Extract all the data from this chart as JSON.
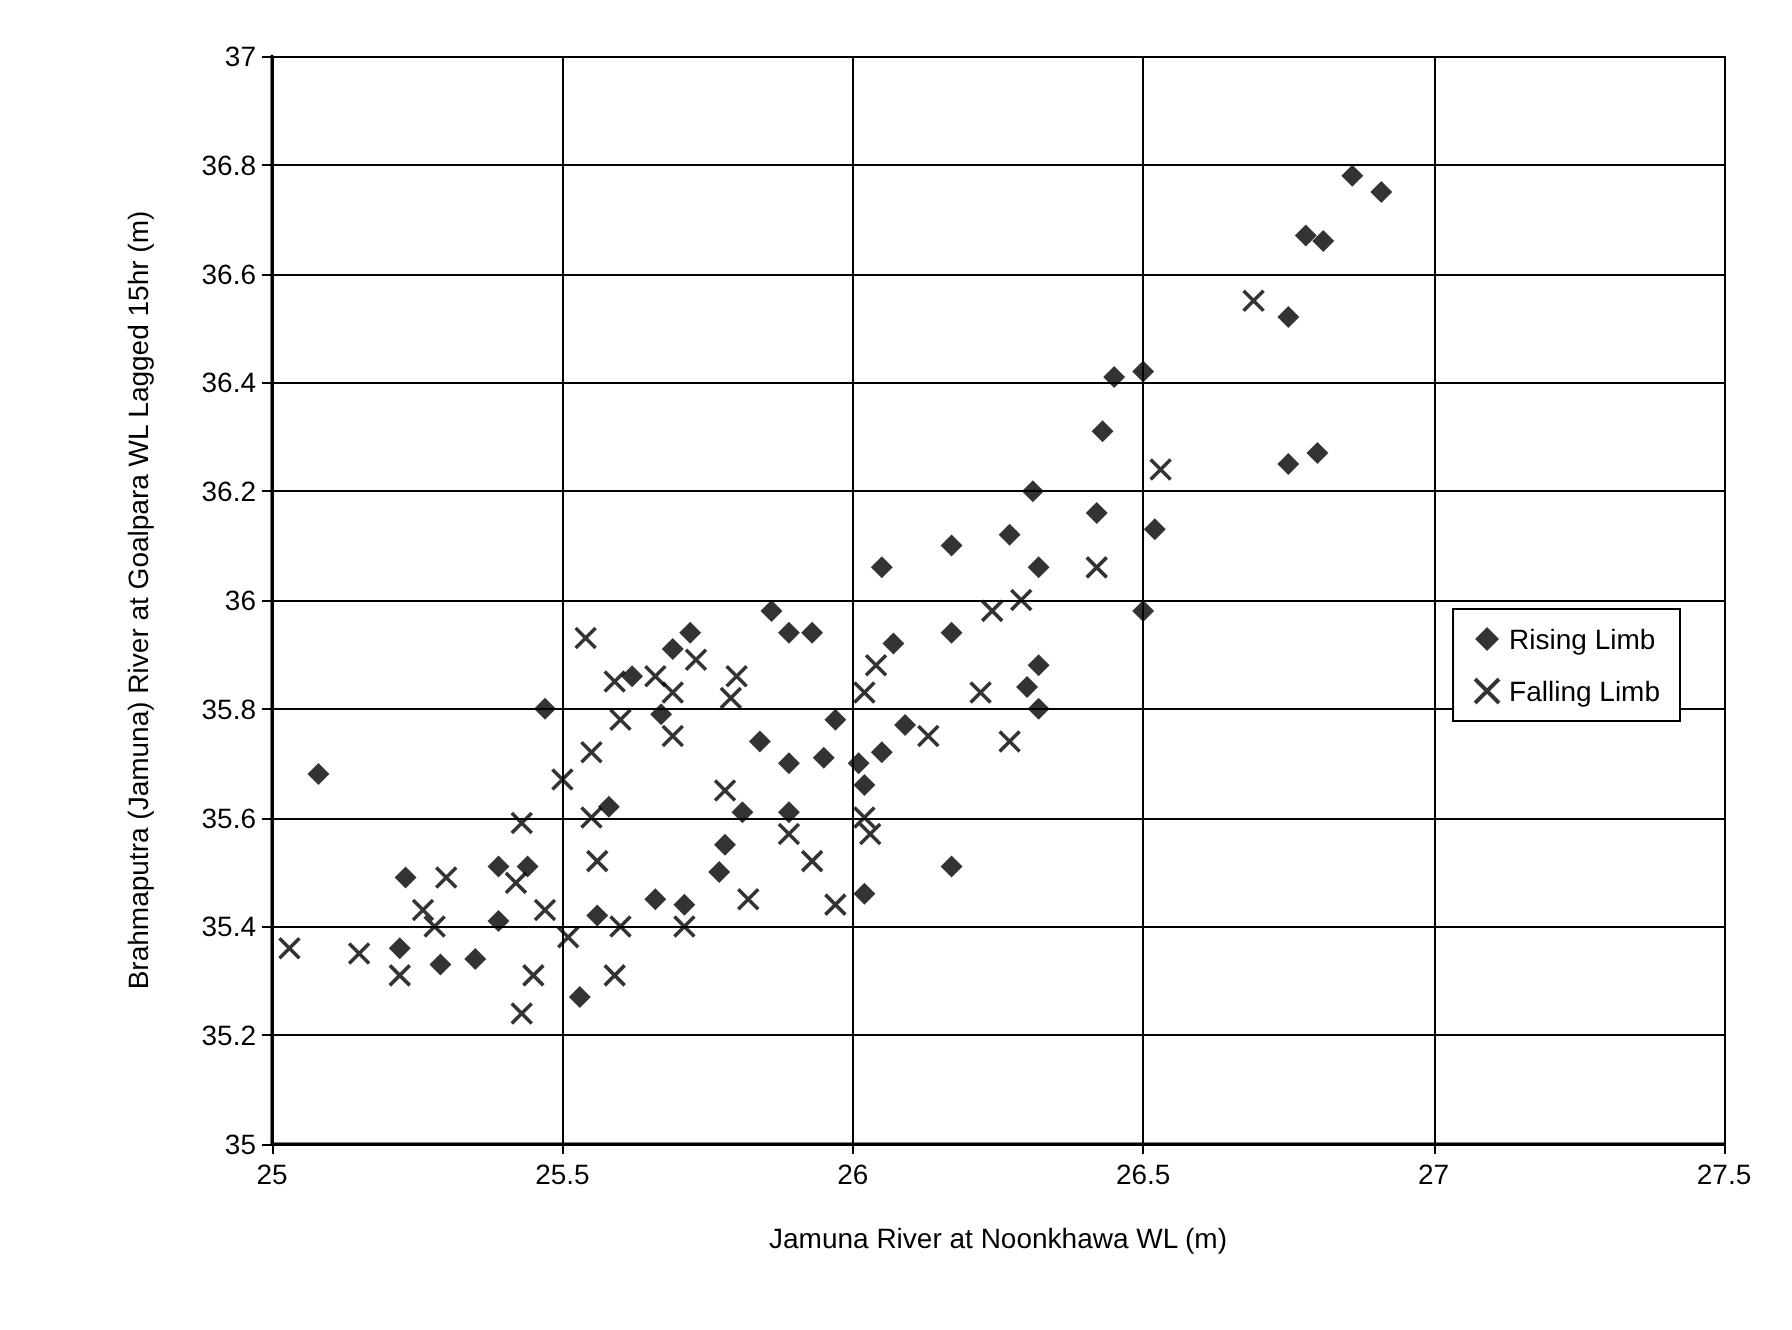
{
  "chart_data": {
    "type": "scatter",
    "xlabel": "Jamuna River at Noonkhawa WL (m)",
    "ylabel": "Brahmaputra (Jamuna) River at Goalpara WL Lagged 15hr (m)",
    "xlim": [
      25,
      27.5
    ],
    "xticks": [
      25,
      25.5,
      26,
      26.5,
      27,
      27.5
    ],
    "ylim": [
      35,
      37
    ],
    "yticks": [
      35,
      35.2,
      35.4,
      35.6,
      35.8,
      36,
      36.2,
      36.4,
      36.6,
      36.8,
      37
    ],
    "grid": true,
    "legend": "right",
    "series": [
      {
        "name": "Rising Limb",
        "color": "#000000",
        "marker": "diamond",
        "x": [
          25.08,
          25.23,
          25.22,
          25.29,
          25.35,
          25.39,
          25.39,
          25.44,
          25.47,
          25.53,
          25.56,
          25.58,
          25.62,
          25.66,
          25.67,
          25.69,
          25.71,
          25.72,
          25.77,
          25.78,
          25.81,
          25.84,
          25.86,
          25.89,
          25.89,
          25.89,
          25.93,
          25.95,
          25.97,
          26.01,
          26.02,
          26.02,
          26.05,
          26.05,
          26.07,
          26.09,
          26.17,
          26.17,
          26.17,
          26.27,
          26.3,
          26.31,
          26.32,
          26.32,
          26.32,
          26.42,
          26.43,
          26.45,
          26.5,
          26.5,
          26.52,
          26.75,
          26.75,
          26.78,
          26.8,
          26.81,
          26.86,
          26.91
        ],
        "values": [
          35.68,
          35.49,
          35.36,
          35.33,
          35.34,
          35.41,
          35.51,
          35.51,
          35.8,
          35.27,
          35.42,
          35.62,
          35.86,
          35.45,
          35.79,
          35.91,
          35.44,
          35.94,
          35.5,
          35.55,
          35.61,
          35.74,
          35.98,
          35.94,
          35.7,
          35.61,
          35.94,
          35.71,
          35.78,
          35.7,
          35.66,
          35.46,
          36.06,
          35.72,
          35.92,
          35.77,
          36.1,
          35.94,
          35.51,
          36.12,
          35.84,
          36.2,
          36.06,
          35.88,
          35.8,
          36.16,
          36.31,
          36.41,
          36.42,
          35.98,
          36.13,
          36.52,
          36.25,
          36.67,
          36.27,
          36.66,
          36.78,
          36.75
        ]
      },
      {
        "name": "Falling Limb",
        "color": "#000000",
        "marker": "cross",
        "x": [
          25.03,
          25.15,
          25.22,
          25.26,
          25.28,
          25.3,
          25.42,
          25.43,
          25.43,
          25.45,
          25.47,
          25.5,
          25.51,
          25.54,
          25.55,
          25.55,
          25.56,
          25.59,
          25.59,
          25.6,
          25.6,
          25.66,
          25.69,
          25.69,
          25.71,
          25.73,
          25.78,
          25.79,
          25.8,
          25.82,
          25.89,
          25.93,
          25.97,
          26.02,
          26.02,
          26.03,
          26.04,
          26.13,
          26.22,
          26.24,
          26.27,
          26.29,
          26.42,
          26.53,
          26.69
        ],
        "values": [
          35.36,
          35.35,
          35.31,
          35.43,
          35.4,
          35.49,
          35.48,
          35.59,
          35.24,
          35.31,
          35.43,
          35.67,
          35.38,
          35.93,
          35.72,
          35.6,
          35.52,
          35.85,
          35.31,
          35.78,
          35.4,
          35.86,
          35.83,
          35.75,
          35.4,
          35.89,
          35.65,
          35.82,
          35.86,
          35.45,
          35.57,
          35.52,
          35.44,
          35.83,
          35.6,
          35.57,
          35.88,
          35.75,
          35.83,
          35.98,
          35.74,
          36.0,
          36.06,
          36.24,
          36.55
        ]
      }
    ]
  }
}
